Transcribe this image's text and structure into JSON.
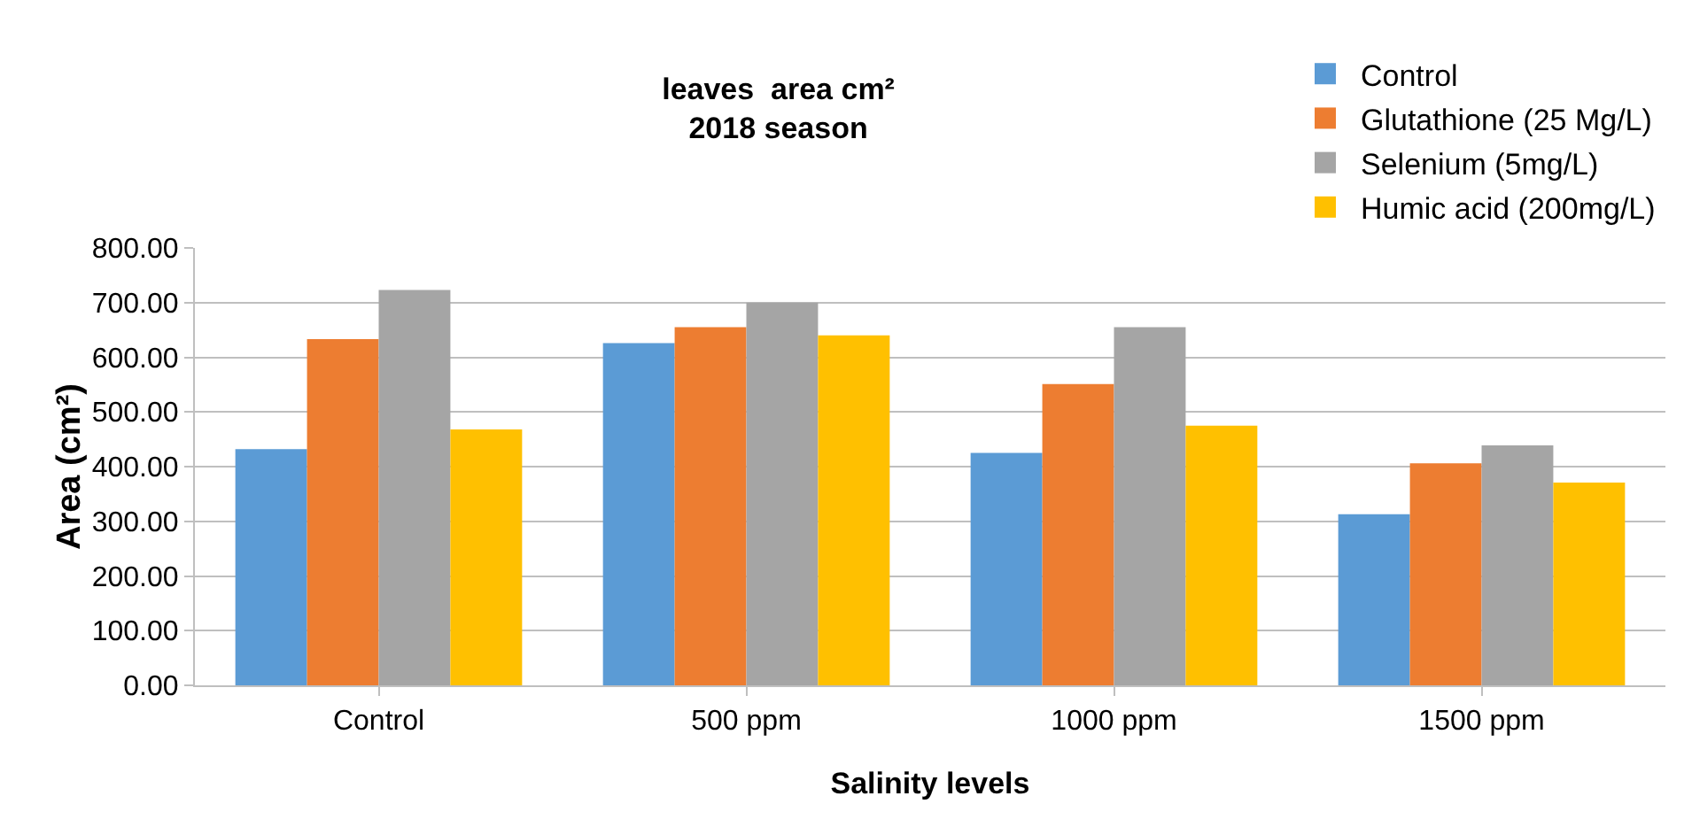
{
  "chart_data": {
    "type": "bar",
    "title": "leaves  area cm²\n2018 season",
    "xlabel": "Salinity levels",
    "ylabel": "Area (cm²)",
    "categories": [
      "Control",
      "500 ppm",
      "1000 ppm",
      "1500 ppm"
    ],
    "series": [
      {
        "name": "Control",
        "color": "#5b9bd5",
        "values": [
          432,
          626,
          425,
          313
        ]
      },
      {
        "name": "Glutathione (25 Mg/L)",
        "color": "#ed7d31",
        "values": [
          633,
          655,
          551,
          406
        ]
      },
      {
        "name": "Selenium (5mg/L)",
        "color": "#a5a5a5",
        "values": [
          723,
          700,
          655,
          439
        ]
      },
      {
        "name": "Humic acid (200mg/L)",
        "color": "#ffc000",
        "values": [
          468,
          640,
          475,
          371
        ]
      }
    ],
    "ylim": [
      0,
      800
    ],
    "yticks": [
      {
        "value": 0,
        "label": "0.00"
      },
      {
        "value": 100,
        "label": "100.00"
      },
      {
        "value": 200,
        "label": "200.00"
      },
      {
        "value": 300,
        "label": "300.00"
      },
      {
        "value": 400,
        "label": "400.00"
      },
      {
        "value": 500,
        "label": "500.00"
      },
      {
        "value": 600,
        "label": "600.00"
      },
      {
        "value": 700,
        "label": "700.00"
      },
      {
        "value": 800,
        "label": "800.00"
      }
    ],
    "grid": "y",
    "legend": "top right"
  }
}
